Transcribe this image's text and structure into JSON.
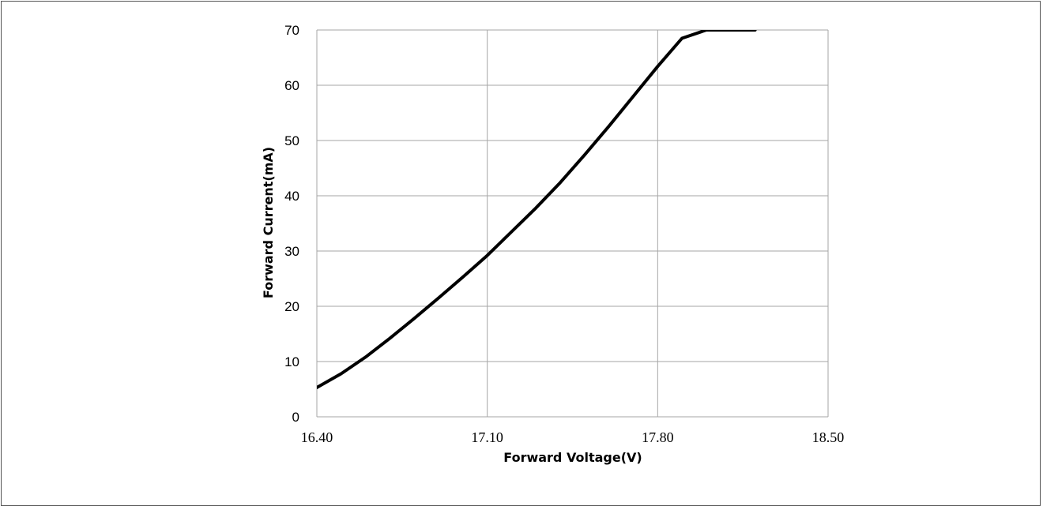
{
  "chart_data": {
    "type": "line",
    "title": "",
    "xlabel": "Forward Voltage(V)",
    "ylabel": "Forward Current(mA)",
    "xlim": [
      16.4,
      18.5
    ],
    "ylim": [
      0,
      70
    ],
    "xticks": [
      16.4,
      17.1,
      17.8,
      18.5
    ],
    "xtick_labels": [
      "16.40",
      "17.10",
      "17.80",
      "18.50"
    ],
    "yticks": [
      0,
      10,
      20,
      30,
      40,
      50,
      60,
      70
    ],
    "ytick_labels": [
      "0",
      "10",
      "20",
      "30",
      "40",
      "50",
      "60",
      "70"
    ],
    "grid": true,
    "legend": "none",
    "line_color": "#000000",
    "grid_color": "#a6a6a6",
    "series": [
      {
        "x": [
          16.4,
          16.5,
          16.6,
          16.7,
          16.8,
          16.9,
          17.0,
          17.1,
          17.2,
          17.3,
          17.4,
          17.5,
          17.6,
          17.7,
          17.8,
          17.9,
          18.0,
          18.1,
          18.2
        ],
        "values": [
          5.3,
          7.8,
          10.8,
          14.2,
          17.8,
          21.5,
          25.3,
          29.2,
          33.5,
          37.8,
          42.4,
          47.4,
          52.6,
          58.0,
          63.4,
          68.5,
          70.0,
          70.0,
          70.0
        ]
      }
    ]
  }
}
